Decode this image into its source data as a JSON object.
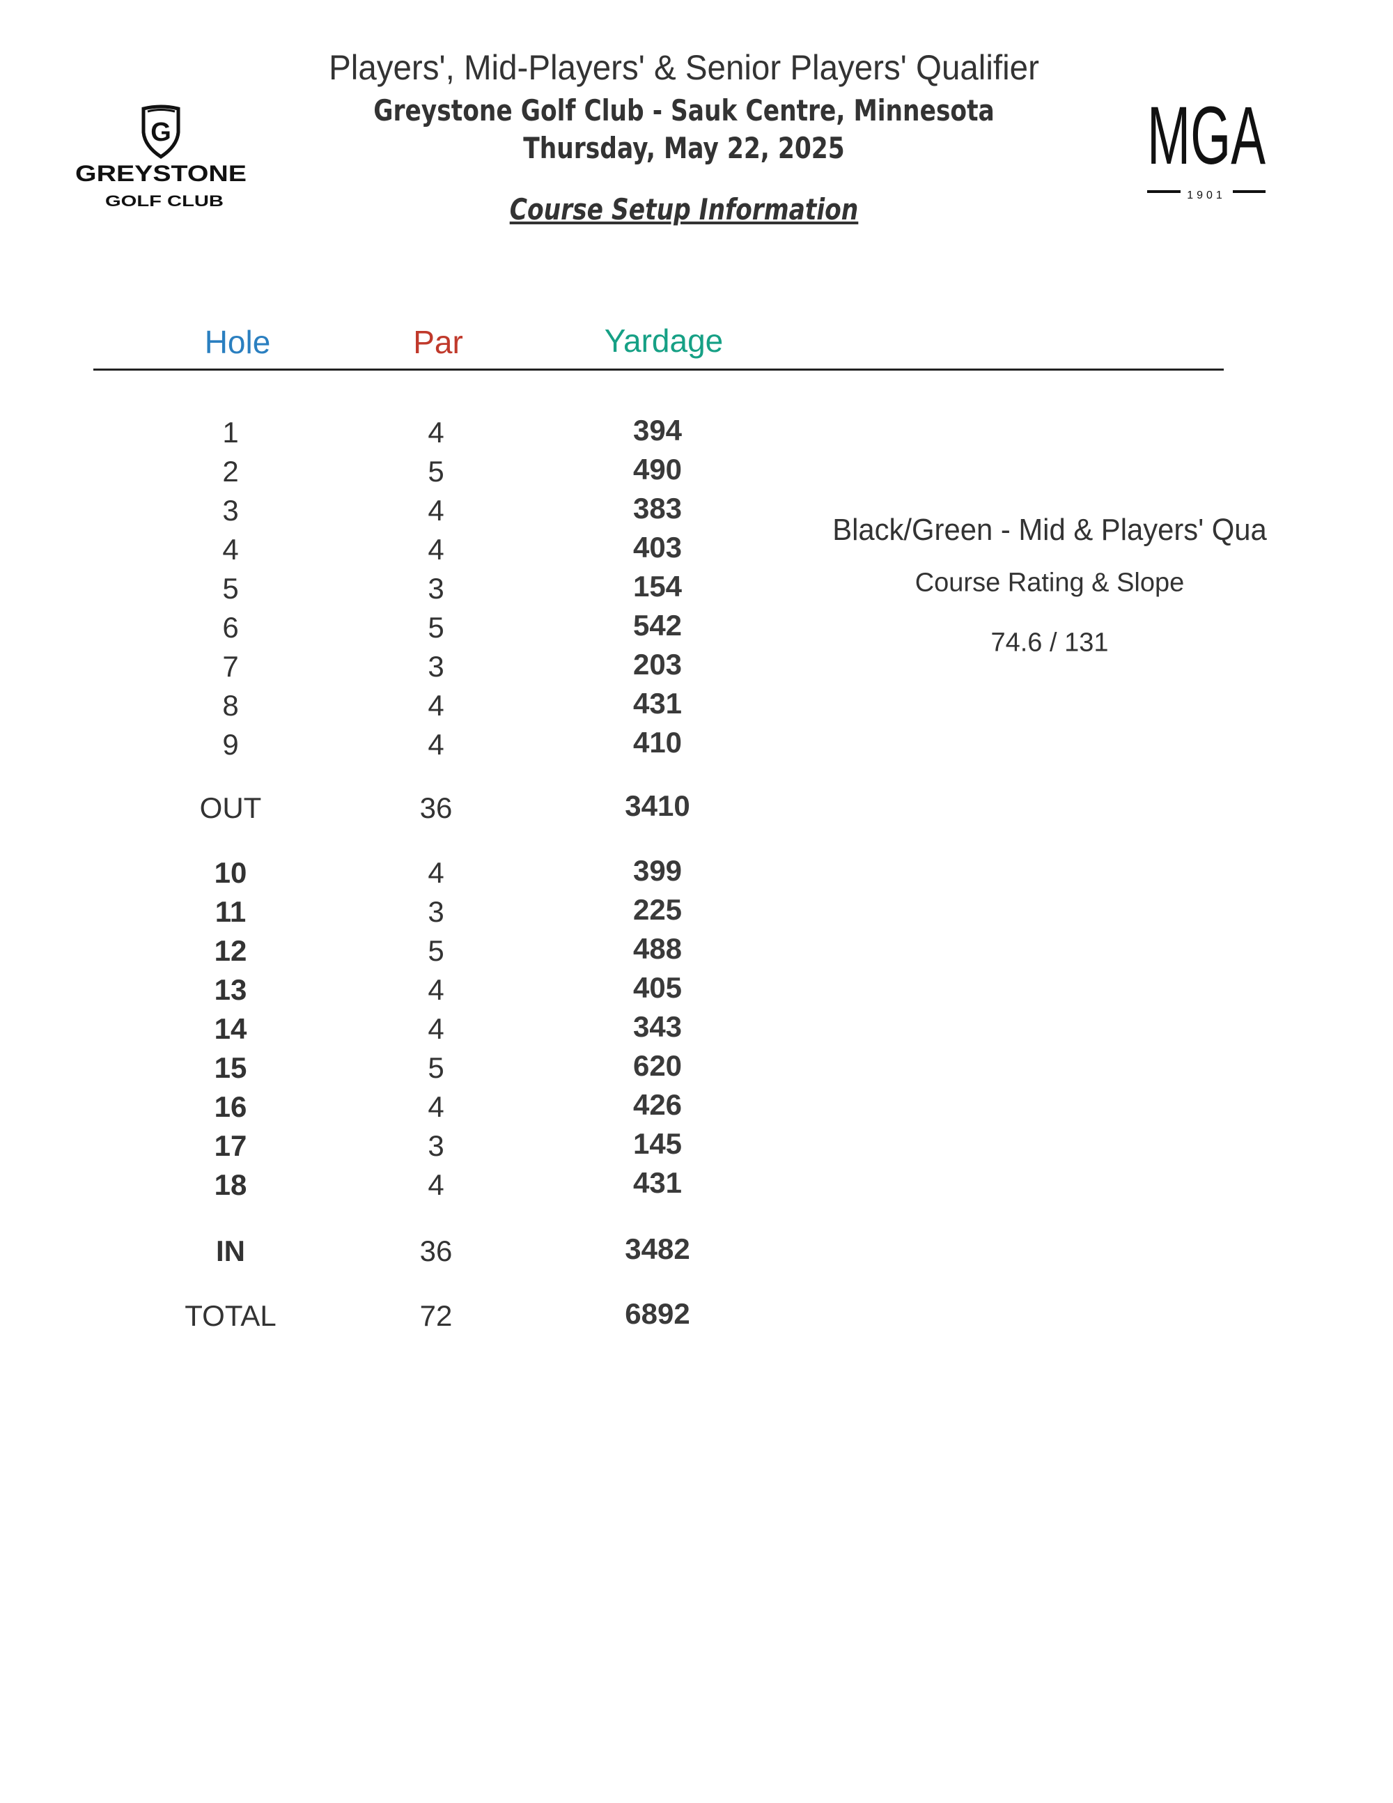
{
  "header": {
    "title": "Players', Mid-Players' & Senior Players' Qualifier",
    "venue": "Greystone Golf Club - Sauk Centre, Minnesota",
    "date": "Thursday, May 22, 2025",
    "section": "Course Setup Information"
  },
  "logos": {
    "left": {
      "name": "GREYSTONE",
      "sub": "GOLF CLUB",
      "mark": "G"
    },
    "right": {
      "name": "MGA",
      "year": "1901"
    }
  },
  "table": {
    "columns": [
      {
        "label": "Hole",
        "color": "#2a7fc0"
      },
      {
        "label": "Par",
        "color": "#c0392b"
      },
      {
        "label": "Yardage",
        "color": "#16a085"
      }
    ],
    "front": [
      {
        "hole": "1",
        "par": "4",
        "yards": "394"
      },
      {
        "hole": "2",
        "par": "5",
        "yards": "490"
      },
      {
        "hole": "3",
        "par": "4",
        "yards": "383"
      },
      {
        "hole": "4",
        "par": "4",
        "yards": "403"
      },
      {
        "hole": "5",
        "par": "3",
        "yards": "154"
      },
      {
        "hole": "6",
        "par": "5",
        "yards": "542"
      },
      {
        "hole": "7",
        "par": "3",
        "yards": "203"
      },
      {
        "hole": "8",
        "par": "4",
        "yards": "431"
      },
      {
        "hole": "9",
        "par": "4",
        "yards": "410"
      }
    ],
    "out": {
      "hole": "OUT",
      "par": "36",
      "yards": "3410"
    },
    "back": [
      {
        "hole": "10",
        "par": "4",
        "yards": "399"
      },
      {
        "hole": "11",
        "par": "3",
        "yards": "225"
      },
      {
        "hole": "12",
        "par": "5",
        "yards": "488"
      },
      {
        "hole": "13",
        "par": "4",
        "yards": "405"
      },
      {
        "hole": "14",
        "par": "4",
        "yards": "343"
      },
      {
        "hole": "15",
        "par": "5",
        "yards": "620"
      },
      {
        "hole": "16",
        "par": "4",
        "yards": "426"
      },
      {
        "hole": "17",
        "par": "3",
        "yards": "145"
      },
      {
        "hole": "18",
        "par": "4",
        "yards": "431"
      }
    ],
    "in": {
      "hole": "IN",
      "par": "36",
      "yards": "3482"
    },
    "total": {
      "hole": "TOTAL",
      "par": "72",
      "yards": "6892"
    }
  },
  "rating": {
    "tee": "Black/Green - Mid & Players' Qua",
    "label": "Course Rating & Slope",
    "value": "74.6 / 131"
  }
}
